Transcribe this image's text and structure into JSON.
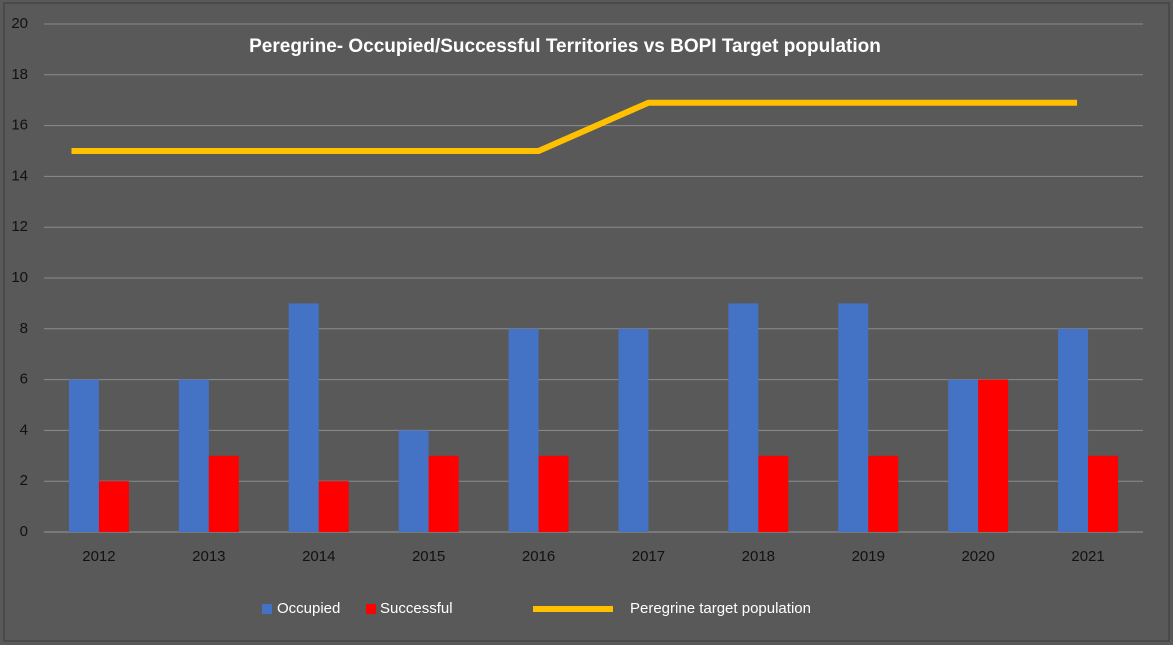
{
  "chart_data": {
    "type": "bar",
    "title": "Peregrine- Occupied/Successful Territories vs BOPI Target population",
    "categories": [
      "2012",
      "2013",
      "2014",
      "2015",
      "2016",
      "2017",
      "2018",
      "2019",
      "2020",
      "2021"
    ],
    "series": [
      {
        "name": "Occupied",
        "type": "bar",
        "color": "#4472c4",
        "values": [
          6,
          6,
          9,
          4,
          8,
          8,
          9,
          9,
          6,
          8
        ]
      },
      {
        "name": "Successful",
        "type": "bar",
        "color": "#ff0000",
        "values": [
          2,
          3,
          2,
          3,
          3,
          0,
          3,
          3,
          6,
          3
        ]
      },
      {
        "name": "Peregrine target population",
        "type": "line",
        "color": "#ffc000",
        "values": [
          15,
          15,
          15,
          15,
          15,
          16.9,
          16.9,
          16.9,
          16.9,
          16.9
        ]
      }
    ],
    "ylim": [
      0,
      20
    ],
    "yticks": [
      0,
      2,
      4,
      6,
      8,
      10,
      12,
      14,
      16,
      18,
      20
    ],
    "grid": true,
    "legend": "bottom"
  }
}
